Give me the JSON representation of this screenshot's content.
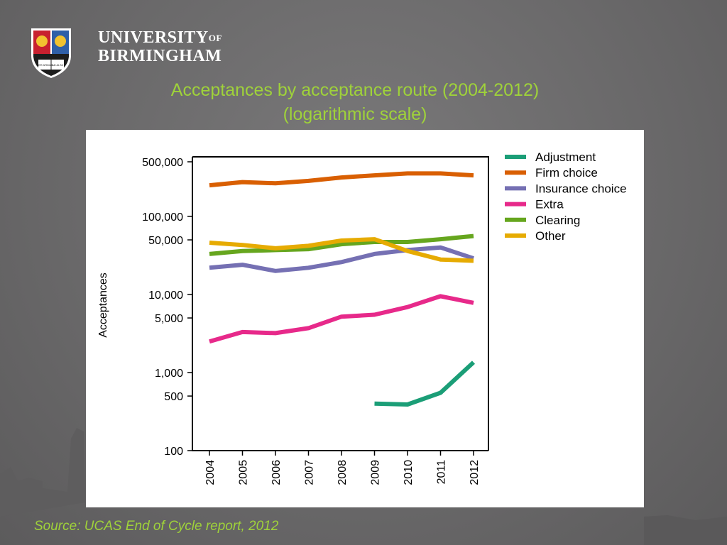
{
  "brand": {
    "name_line1": "UNIVERSITY",
    "name_of": "OF",
    "name_line2": "BIRMINGHAM",
    "crest_motto_left": "PER ARDUA",
    "crest_motto_right": "AD ALTA"
  },
  "title_line1": "Acceptances by acceptance route (2004-2012)",
  "title_line2": "(logarithmic scale)",
  "source": "Source: UCAS End of Cycle report, 2012",
  "colors": {
    "title": "#9fd23a",
    "background": "#6d6c6d"
  },
  "chart_data": {
    "type": "line",
    "ylabel": "Acceptances",
    "xlabel": "",
    "yscale": "log",
    "ylim": [
      100,
      600000
    ],
    "yticks": [
      100,
      500,
      1000,
      5000,
      10000,
      50000,
      100000,
      500000
    ],
    "yticklabels": [
      "100",
      "500",
      "1,000",
      "5,000",
      "10,000",
      "50,000",
      "100,000",
      "500,000"
    ],
    "x": [
      "2004",
      "2005",
      "2006",
      "2007",
      "2008",
      "2009",
      "2010",
      "2011",
      "2012"
    ],
    "legend_position": "top-right outside",
    "series": [
      {
        "name": "Adjustment",
        "color": "#1b9e77",
        "values": [
          null,
          null,
          null,
          null,
          null,
          400,
          390,
          550,
          1350
        ]
      },
      {
        "name": "Firm choice",
        "color": "#d95f02",
        "values": [
          250000,
          275000,
          265000,
          285000,
          315000,
          335000,
          355000,
          355000,
          335000
        ]
      },
      {
        "name": "Insurance choice",
        "color": "#7570b3",
        "values": [
          22000,
          24000,
          20000,
          22000,
          26000,
          33000,
          37000,
          40000,
          29000
        ]
      },
      {
        "name": "Extra",
        "color": "#e7298a",
        "values": [
          2500,
          3300,
          3200,
          3700,
          5200,
          5500,
          6900,
          9500,
          7800
        ]
      },
      {
        "name": "Clearing",
        "color": "#66a61e",
        "values": [
          33000,
          36000,
          37000,
          38000,
          44000,
          47000,
          47000,
          51000,
          56000
        ]
      },
      {
        "name": "Other",
        "color": "#e6ab02",
        "values": [
          46000,
          43000,
          39000,
          42000,
          49000,
          51000,
          36000,
          28000,
          27000
        ]
      }
    ]
  }
}
